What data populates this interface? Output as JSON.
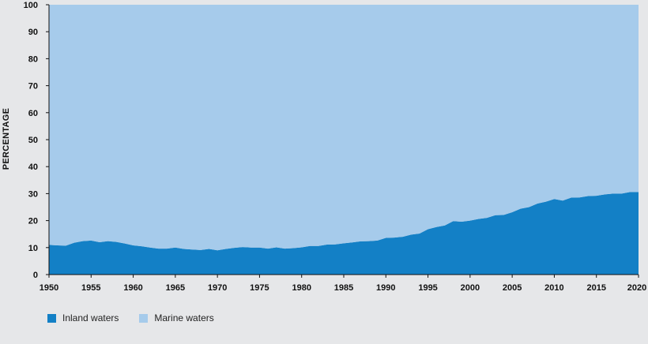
{
  "chart_data": {
    "type": "area",
    "stacked": true,
    "title": "",
    "xlabel": "",
    "ylabel": "PERCENTAGE",
    "xlim": [
      1950,
      2020
    ],
    "ylim": [
      0,
      100
    ],
    "x_ticks": [
      1950,
      1955,
      1960,
      1965,
      1970,
      1975,
      1980,
      1985,
      1990,
      1995,
      2000,
      2005,
      2010,
      2015,
      2020
    ],
    "y_ticks": [
      0,
      10,
      20,
      30,
      40,
      50,
      60,
      70,
      80,
      90,
      100
    ],
    "grid": false,
    "legend_position": "bottom-left",
    "x": [
      1950,
      1951,
      1952,
      1953,
      1954,
      1955,
      1956,
      1957,
      1958,
      1959,
      1960,
      1961,
      1962,
      1963,
      1964,
      1965,
      1966,
      1967,
      1968,
      1969,
      1970,
      1971,
      1972,
      1973,
      1974,
      1975,
      1976,
      1977,
      1978,
      1979,
      1980,
      1981,
      1982,
      1983,
      1984,
      1985,
      1986,
      1987,
      1988,
      1989,
      1990,
      1991,
      1992,
      1993,
      1994,
      1995,
      1996,
      1997,
      1998,
      1999,
      2000,
      2001,
      2002,
      2003,
      2004,
      2005,
      2006,
      2007,
      2008,
      2009,
      2010,
      2011,
      2012,
      2013,
      2014,
      2015,
      2016,
      2017,
      2018,
      2019,
      2020
    ],
    "series": [
      {
        "name": "Inland waters",
        "color": "#1380c6",
        "values": [
          11.0,
          10.8,
          10.7,
          11.8,
          12.4,
          12.6,
          12.0,
          12.4,
          12.1,
          11.5,
          10.8,
          10.5,
          10.0,
          9.6,
          9.6,
          10.0,
          9.5,
          9.3,
          9.1,
          9.5,
          9.0,
          9.5,
          9.9,
          10.2,
          10.0,
          10.0,
          9.6,
          10.1,
          9.6,
          9.8,
          10.1,
          10.6,
          10.6,
          11.1,
          11.2,
          11.6,
          11.9,
          12.3,
          12.4,
          12.6,
          13.6,
          13.7,
          14.0,
          14.8,
          15.2,
          16.8,
          17.6,
          18.2,
          19.8,
          19.6,
          20.0,
          20.6,
          21.0,
          22.0,
          22.1,
          23.1,
          24.4,
          25.0,
          26.3,
          27.0,
          28.0,
          27.4,
          28.5,
          28.6,
          29.1,
          29.2,
          29.7,
          30.0,
          30.0,
          30.6,
          30.6
        ]
      },
      {
        "name": "Marine waters",
        "color": "#a6cbeb",
        "values": [
          89.0,
          89.2,
          89.3,
          88.2,
          87.6,
          87.4,
          88.0,
          87.6,
          87.9,
          88.5,
          89.2,
          89.5,
          90.0,
          90.4,
          90.4,
          90.0,
          90.5,
          90.7,
          90.9,
          90.5,
          91.0,
          90.5,
          90.1,
          89.8,
          90.0,
          90.0,
          90.4,
          89.9,
          90.4,
          90.2,
          89.9,
          89.4,
          89.4,
          88.9,
          88.8,
          88.4,
          88.1,
          87.7,
          87.6,
          87.4,
          86.4,
          86.3,
          86.0,
          85.2,
          84.8,
          83.2,
          82.4,
          81.8,
          80.2,
          80.4,
          80.0,
          79.4,
          79.0,
          78.0,
          77.9,
          76.9,
          75.6,
          75.0,
          73.7,
          73.0,
          72.0,
          72.6,
          71.5,
          71.4,
          70.9,
          70.8,
          70.3,
          70.0,
          70.0,
          69.4,
          69.4
        ]
      }
    ]
  }
}
